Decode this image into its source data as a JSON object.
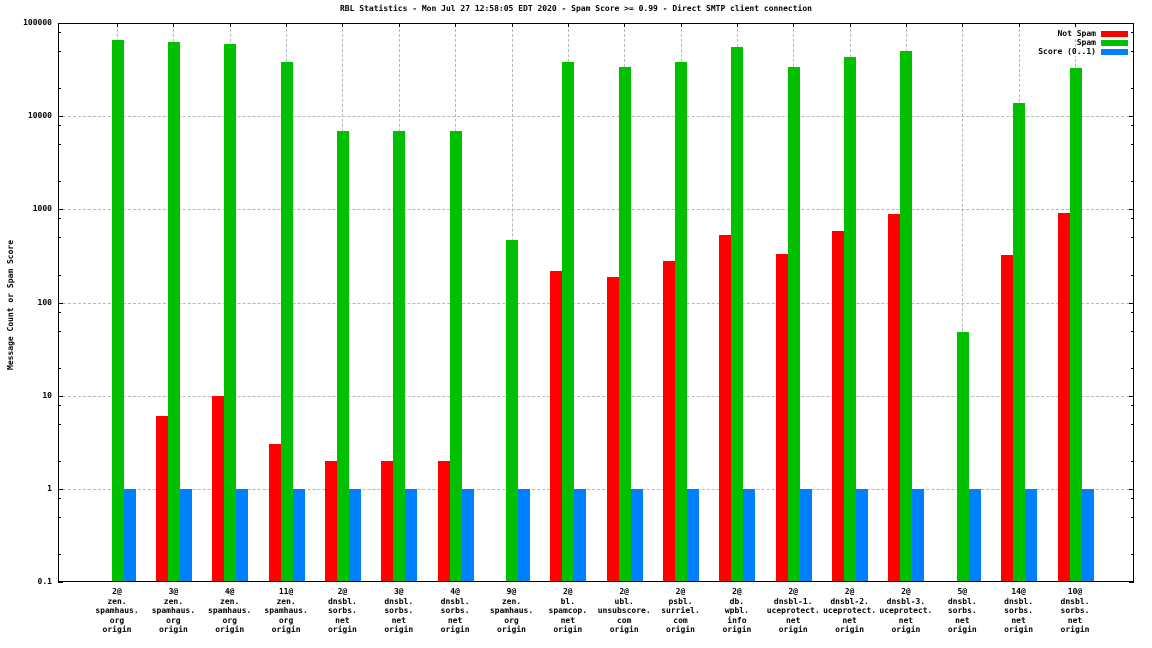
{
  "chart_data": {
    "type": "bar",
    "title": "RBL Statistics - Mon Jul 27 12:58:05 EDT 2020 - Spam Score >= 0.99 - Direct SMTP client connection",
    "ylabel": "Message Count or Spam Score",
    "yscale": "log",
    "ylim": [
      0.1,
      100000
    ],
    "ytick_labels": [
      "100000",
      "10000",
      "1000",
      "100",
      "10",
      "1",
      "0.1"
    ],
    "grid": true,
    "legend_position": "top-right-inside",
    "categories": [
      [
        "2@",
        "zen.",
        "spamhaus.",
        "org",
        "origin"
      ],
      [
        "3@",
        "zen.",
        "spamhaus.",
        "org",
        "origin"
      ],
      [
        "4@",
        "zen.",
        "spamhaus.",
        "org",
        "origin"
      ],
      [
        "11@",
        "zen.",
        "spamhaus.",
        "org",
        "origin"
      ],
      [
        "2@",
        "dnsbl.",
        "sorbs.",
        "net",
        "origin"
      ],
      [
        "3@",
        "dnsbl.",
        "sorbs.",
        "net",
        "origin"
      ],
      [
        "4@",
        "dnsbl.",
        "sorbs.",
        "net",
        "origin"
      ],
      [
        "9@",
        "zen.",
        "spamhaus.",
        "org",
        "origin"
      ],
      [
        "2@",
        "bl.",
        "spamcop.",
        "net",
        "origin"
      ],
      [
        "2@",
        "ubl.",
        "unsubscore.",
        "com",
        "origin"
      ],
      [
        "2@",
        "psbl.",
        "surriel.",
        "com",
        "origin"
      ],
      [
        "2@",
        "db.",
        "wpbl.",
        "info",
        "origin"
      ],
      [
        "2@",
        "dnsbl-1.",
        "uceprotect.",
        "net",
        "origin"
      ],
      [
        "2@",
        "dnsbl-2.",
        "uceprotect.",
        "net",
        "origin"
      ],
      [
        "2@",
        "dnsbl-3.",
        "uceprotect.",
        "net",
        "origin"
      ],
      [
        "5@",
        "dnsbl.",
        "sorbs.",
        "net",
        "origin"
      ],
      [
        "14@",
        "dnsbl.",
        "sorbs.",
        "net",
        "origin"
      ],
      [
        "10@",
        "dnsbl.",
        "sorbs.",
        "net",
        "origin"
      ]
    ],
    "series": [
      {
        "name": "Not Spam",
        "color": "#ff0000",
        "values": [
          0,
          6,
          10,
          3,
          2,
          2,
          2,
          0,
          220,
          190,
          280,
          530,
          330,
          590,
          900,
          0,
          320,
          920
        ]
      },
      {
        "name": "Spam",
        "color": "#00c000",
        "values": [
          65000,
          63000,
          60000,
          38000,
          7000,
          7000,
          7000,
          470,
          38000,
          34000,
          38000,
          56000,
          34000,
          43000,
          50000,
          48,
          14000,
          33000
        ]
      },
      {
        "name": "Score (0..1)",
        "color": "#0080ff",
        "values": [
          1,
          1,
          1,
          1,
          1,
          1,
          1,
          1,
          1,
          1,
          1,
          1,
          1,
          1,
          1,
          1,
          1,
          1
        ]
      }
    ]
  }
}
